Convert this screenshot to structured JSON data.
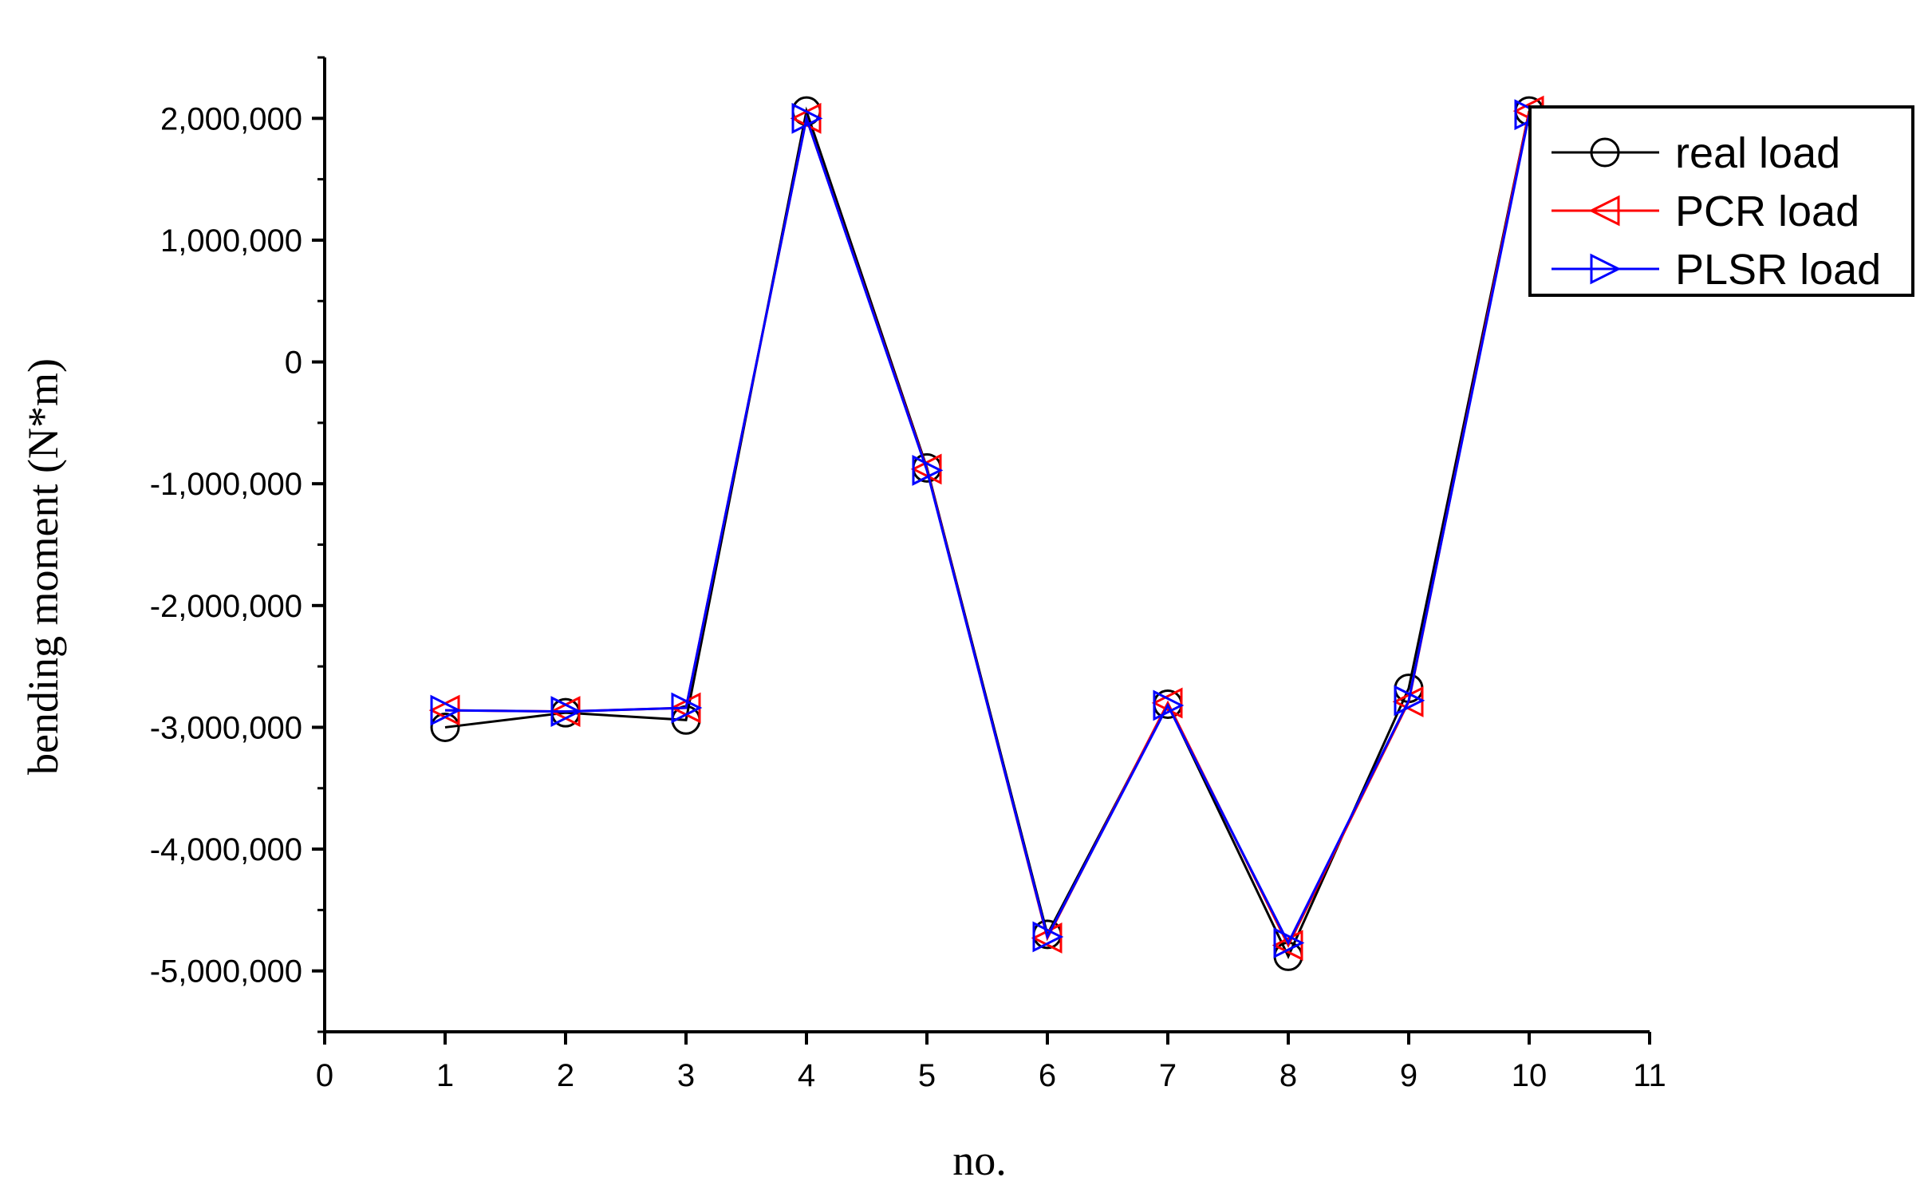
{
  "chart_data": {
    "type": "line",
    "title": "",
    "xlabel": "no.",
    "ylabel": "bending moment (N*m)",
    "xlim": [
      0,
      11
    ],
    "ylim": [
      -5500000,
      2500000
    ],
    "xticks": [
      0,
      1,
      2,
      3,
      4,
      5,
      6,
      7,
      8,
      9,
      10,
      11
    ],
    "xtick_labels": [
      "0",
      "1",
      "2",
      "3",
      "4",
      "5",
      "6",
      "7",
      "8",
      "9",
      "10",
      "11"
    ],
    "yticks": [
      2000000,
      1000000,
      0,
      -1000000,
      -2000000,
      -3000000,
      -4000000,
      -5000000
    ],
    "ytick_labels": [
      "2,000,000",
      "1,000,000",
      "0",
      "-1,000,000",
      "-2,000,000",
      "-3,000,000",
      "-4,000,000",
      "-5,000,000"
    ],
    "grid": false,
    "legend_position": "top-right",
    "x": [
      1,
      2,
      3,
      4,
      5,
      6,
      7,
      8,
      9,
      10
    ],
    "series": [
      {
        "name": "real load",
        "color": "#000000",
        "marker": "circle",
        "values": [
          -3000000,
          -2880000,
          -2940000,
          2060000,
          -870000,
          -4700000,
          -2810000,
          -4880000,
          -2680000,
          2060000
        ]
      },
      {
        "name": "PCR load",
        "color": "#ff0000",
        "marker": "triangle-left",
        "values": [
          -2860000,
          -2870000,
          -2840000,
          2000000,
          -880000,
          -4730000,
          -2800000,
          -4790000,
          -2790000,
          2060000
        ]
      },
      {
        "name": "PLSR load",
        "color": "#0000ff",
        "marker": "triangle-right",
        "values": [
          -2860000,
          -2870000,
          -2840000,
          2000000,
          -890000,
          -4720000,
          -2820000,
          -4770000,
          -2780000,
          2030000
        ]
      }
    ]
  }
}
